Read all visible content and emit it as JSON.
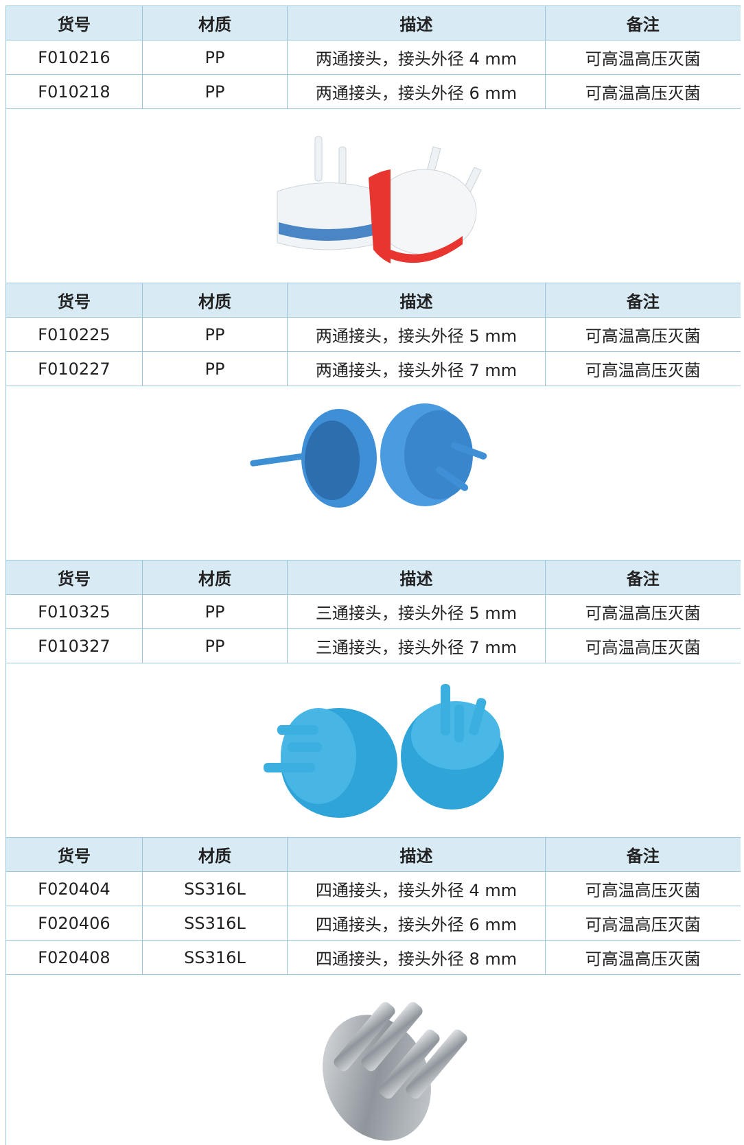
{
  "sections": [
    {
      "table": {
        "header": [
          "货号",
          "材质",
          "描述",
          "备注"
        ],
        "rows": [
          [
            "F010216",
            "PP",
            "两通接头，接头外径 4 mm",
            "可高温高压灭菌"
          ],
          [
            "F010218",
            "PP",
            "两通接头，接头外径 6 mm",
            "可高温高压灭菌"
          ]
        ]
      }
    },
    {
      "table": {
        "header": [
          "货号",
          "材质",
          "描述",
          "备注"
        ],
        "rows": [
          [
            "F010225",
            "PP",
            "两通接头，接头外径 5 mm",
            "可高温高压灭菌"
          ],
          [
            "F010227",
            "PP",
            "两通接头，接头外径 7 mm",
            "可高温高压灭菌"
          ]
        ]
      }
    },
    {
      "table": {
        "header": [
          "货号",
          "材质",
          "描述",
          "备注"
        ],
        "rows": [
          [
            "F010325",
            "PP",
            "三通接头，接头外径 5 mm",
            "可高温高压灭菌"
          ],
          [
            "F010327",
            "PP",
            "三通接头，接头外径 7 mm",
            "可高温高压灭菌"
          ]
        ]
      }
    },
    {
      "table": {
        "header": [
          "货号",
          "材质",
          "描述",
          "备注"
        ],
        "rows": [
          [
            "F020404",
            "SS316L",
            "四通接头，接头外径 4 mm",
            "可高温高压灭菌"
          ],
          [
            "F020406",
            "SS316L",
            "四通接头，接头外径 6 mm",
            "可高温高压灭菌"
          ],
          [
            "F020408",
            "SS316L",
            "四通接头，接头外径 8 mm",
            "可高温高压灭菌"
          ]
        ]
      }
    }
  ]
}
